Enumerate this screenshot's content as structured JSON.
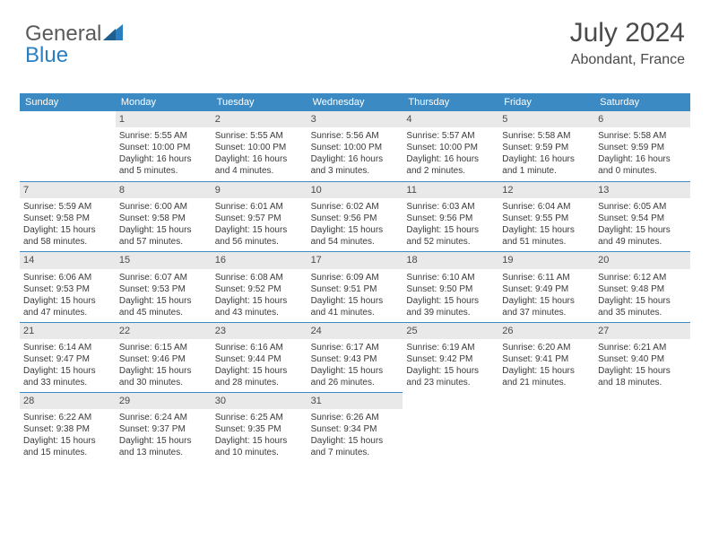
{
  "logo": {
    "text1": "General",
    "text2": "Blue"
  },
  "header": {
    "title": "July 2024",
    "location": "Abondant, France"
  },
  "colors": {
    "header_bg": "#3b8ac4",
    "daynum_bg": "#e9e9e9",
    "text": "#3a3a3a",
    "logo_gray": "#5a5a5a",
    "logo_blue": "#2a7fc0"
  },
  "weekdays": [
    "Sunday",
    "Monday",
    "Tuesday",
    "Wednesday",
    "Thursday",
    "Friday",
    "Saturday"
  ],
  "firstWeekdayIndex": 1,
  "days": [
    {
      "n": "1",
      "sunrise": "Sunrise: 5:55 AM",
      "sunset": "Sunset: 10:00 PM",
      "d1": "Daylight: 16 hours",
      "d2": "and 5 minutes."
    },
    {
      "n": "2",
      "sunrise": "Sunrise: 5:55 AM",
      "sunset": "Sunset: 10:00 PM",
      "d1": "Daylight: 16 hours",
      "d2": "and 4 minutes."
    },
    {
      "n": "3",
      "sunrise": "Sunrise: 5:56 AM",
      "sunset": "Sunset: 10:00 PM",
      "d1": "Daylight: 16 hours",
      "d2": "and 3 minutes."
    },
    {
      "n": "4",
      "sunrise": "Sunrise: 5:57 AM",
      "sunset": "Sunset: 10:00 PM",
      "d1": "Daylight: 16 hours",
      "d2": "and 2 minutes."
    },
    {
      "n": "5",
      "sunrise": "Sunrise: 5:58 AM",
      "sunset": "Sunset: 9:59 PM",
      "d1": "Daylight: 16 hours",
      "d2": "and 1 minute."
    },
    {
      "n": "6",
      "sunrise": "Sunrise: 5:58 AM",
      "sunset": "Sunset: 9:59 PM",
      "d1": "Daylight: 16 hours",
      "d2": "and 0 minutes."
    },
    {
      "n": "7",
      "sunrise": "Sunrise: 5:59 AM",
      "sunset": "Sunset: 9:58 PM",
      "d1": "Daylight: 15 hours",
      "d2": "and 58 minutes."
    },
    {
      "n": "8",
      "sunrise": "Sunrise: 6:00 AM",
      "sunset": "Sunset: 9:58 PM",
      "d1": "Daylight: 15 hours",
      "d2": "and 57 minutes."
    },
    {
      "n": "9",
      "sunrise": "Sunrise: 6:01 AM",
      "sunset": "Sunset: 9:57 PM",
      "d1": "Daylight: 15 hours",
      "d2": "and 56 minutes."
    },
    {
      "n": "10",
      "sunrise": "Sunrise: 6:02 AM",
      "sunset": "Sunset: 9:56 PM",
      "d1": "Daylight: 15 hours",
      "d2": "and 54 minutes."
    },
    {
      "n": "11",
      "sunrise": "Sunrise: 6:03 AM",
      "sunset": "Sunset: 9:56 PM",
      "d1": "Daylight: 15 hours",
      "d2": "and 52 minutes."
    },
    {
      "n": "12",
      "sunrise": "Sunrise: 6:04 AM",
      "sunset": "Sunset: 9:55 PM",
      "d1": "Daylight: 15 hours",
      "d2": "and 51 minutes."
    },
    {
      "n": "13",
      "sunrise": "Sunrise: 6:05 AM",
      "sunset": "Sunset: 9:54 PM",
      "d1": "Daylight: 15 hours",
      "d2": "and 49 minutes."
    },
    {
      "n": "14",
      "sunrise": "Sunrise: 6:06 AM",
      "sunset": "Sunset: 9:53 PM",
      "d1": "Daylight: 15 hours",
      "d2": "and 47 minutes."
    },
    {
      "n": "15",
      "sunrise": "Sunrise: 6:07 AM",
      "sunset": "Sunset: 9:53 PM",
      "d1": "Daylight: 15 hours",
      "d2": "and 45 minutes."
    },
    {
      "n": "16",
      "sunrise": "Sunrise: 6:08 AM",
      "sunset": "Sunset: 9:52 PM",
      "d1": "Daylight: 15 hours",
      "d2": "and 43 minutes."
    },
    {
      "n": "17",
      "sunrise": "Sunrise: 6:09 AM",
      "sunset": "Sunset: 9:51 PM",
      "d1": "Daylight: 15 hours",
      "d2": "and 41 minutes."
    },
    {
      "n": "18",
      "sunrise": "Sunrise: 6:10 AM",
      "sunset": "Sunset: 9:50 PM",
      "d1": "Daylight: 15 hours",
      "d2": "and 39 minutes."
    },
    {
      "n": "19",
      "sunrise": "Sunrise: 6:11 AM",
      "sunset": "Sunset: 9:49 PM",
      "d1": "Daylight: 15 hours",
      "d2": "and 37 minutes."
    },
    {
      "n": "20",
      "sunrise": "Sunrise: 6:12 AM",
      "sunset": "Sunset: 9:48 PM",
      "d1": "Daylight: 15 hours",
      "d2": "and 35 minutes."
    },
    {
      "n": "21",
      "sunrise": "Sunrise: 6:14 AM",
      "sunset": "Sunset: 9:47 PM",
      "d1": "Daylight: 15 hours",
      "d2": "and 33 minutes."
    },
    {
      "n": "22",
      "sunrise": "Sunrise: 6:15 AM",
      "sunset": "Sunset: 9:46 PM",
      "d1": "Daylight: 15 hours",
      "d2": "and 30 minutes."
    },
    {
      "n": "23",
      "sunrise": "Sunrise: 6:16 AM",
      "sunset": "Sunset: 9:44 PM",
      "d1": "Daylight: 15 hours",
      "d2": "and 28 minutes."
    },
    {
      "n": "24",
      "sunrise": "Sunrise: 6:17 AM",
      "sunset": "Sunset: 9:43 PM",
      "d1": "Daylight: 15 hours",
      "d2": "and 26 minutes."
    },
    {
      "n": "25",
      "sunrise": "Sunrise: 6:19 AM",
      "sunset": "Sunset: 9:42 PM",
      "d1": "Daylight: 15 hours",
      "d2": "and 23 minutes."
    },
    {
      "n": "26",
      "sunrise": "Sunrise: 6:20 AM",
      "sunset": "Sunset: 9:41 PM",
      "d1": "Daylight: 15 hours",
      "d2": "and 21 minutes."
    },
    {
      "n": "27",
      "sunrise": "Sunrise: 6:21 AM",
      "sunset": "Sunset: 9:40 PM",
      "d1": "Daylight: 15 hours",
      "d2": "and 18 minutes."
    },
    {
      "n": "28",
      "sunrise": "Sunrise: 6:22 AM",
      "sunset": "Sunset: 9:38 PM",
      "d1": "Daylight: 15 hours",
      "d2": "and 15 minutes."
    },
    {
      "n": "29",
      "sunrise": "Sunrise: 6:24 AM",
      "sunset": "Sunset: 9:37 PM",
      "d1": "Daylight: 15 hours",
      "d2": "and 13 minutes."
    },
    {
      "n": "30",
      "sunrise": "Sunrise: 6:25 AM",
      "sunset": "Sunset: 9:35 PM",
      "d1": "Daylight: 15 hours",
      "d2": "and 10 minutes."
    },
    {
      "n": "31",
      "sunrise": "Sunrise: 6:26 AM",
      "sunset": "Sunset: 9:34 PM",
      "d1": "Daylight: 15 hours",
      "d2": "and 7 minutes."
    }
  ]
}
